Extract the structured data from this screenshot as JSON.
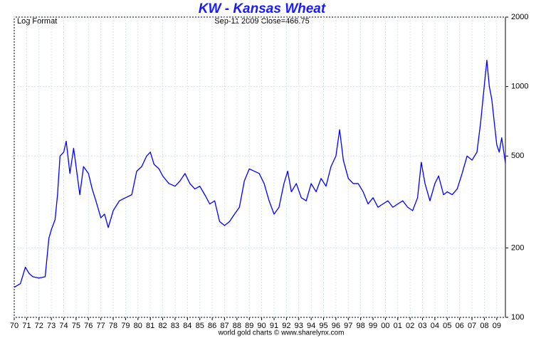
{
  "chart_data": {
    "type": "line",
    "title": "KW  -  Kansas Wheat",
    "subtitle": "Sep-11  2009   Close=466.75",
    "note": "Log Format",
    "footer": "world gold charts © www.sharelynx.com",
    "yscale": "log",
    "grid": true,
    "color": "#0000ff",
    "xlim": [
      1970,
      2009.7
    ],
    "ylim": [
      100,
      2000
    ],
    "yticks": [
      100,
      200,
      500,
      1000,
      2000
    ],
    "xticks": [
      {
        "value": 1970,
        "label": "70"
      },
      {
        "value": 1971,
        "label": "71"
      },
      {
        "value": 1972,
        "label": "72"
      },
      {
        "value": 1973,
        "label": "73"
      },
      {
        "value": 1974,
        "label": "74"
      },
      {
        "value": 1975,
        "label": "75"
      },
      {
        "value": 1976,
        "label": "76"
      },
      {
        "value": 1977,
        "label": "77"
      },
      {
        "value": 1978,
        "label": "78"
      },
      {
        "value": 1979,
        "label": "79"
      },
      {
        "value": 1980,
        "label": "80"
      },
      {
        "value": 1981,
        "label": "81"
      },
      {
        "value": 1982,
        "label": "82"
      },
      {
        "value": 1983,
        "label": "83"
      },
      {
        "value": 1984,
        "label": "84"
      },
      {
        "value": 1985,
        "label": "85"
      },
      {
        "value": 1986,
        "label": "86"
      },
      {
        "value": 1987,
        "label": "87"
      },
      {
        "value": 1988,
        "label": "88"
      },
      {
        "value": 1989,
        "label": "89"
      },
      {
        "value": 1990,
        "label": "90"
      },
      {
        "value": 1991,
        "label": "91"
      },
      {
        "value": 1992,
        "label": "92"
      },
      {
        "value": 1993,
        "label": "93"
      },
      {
        "value": 1994,
        "label": "94"
      },
      {
        "value": 1995,
        "label": "95"
      },
      {
        "value": 1996,
        "label": "96"
      },
      {
        "value": 1997,
        "label": "97"
      },
      {
        "value": 1998,
        "label": "98"
      },
      {
        "value": 1999,
        "label": "99"
      },
      {
        "value": 2000,
        "label": "00"
      },
      {
        "value": 2001,
        "label": "01"
      },
      {
        "value": 2002,
        "label": "02"
      },
      {
        "value": 2003,
        "label": "03"
      },
      {
        "value": 2004,
        "label": "04"
      },
      {
        "value": 2005,
        "label": "05"
      },
      {
        "value": 2006,
        "label": "06"
      },
      {
        "value": 2007,
        "label": "07"
      },
      {
        "value": 2008,
        "label": "08"
      },
      {
        "value": 2009,
        "label": "09"
      }
    ],
    "x": [
      1970.0,
      1970.5,
      1970.9,
      1971.2,
      1971.5,
      1972.0,
      1972.5,
      1972.8,
      1973.0,
      1973.3,
      1973.5,
      1973.7,
      1974.0,
      1974.2,
      1974.5,
      1974.8,
      1975.0,
      1975.3,
      1975.6,
      1976.0,
      1976.3,
      1976.6,
      1977.0,
      1977.3,
      1977.6,
      1978.0,
      1978.5,
      1979.0,
      1979.5,
      1979.9,
      1980.3,
      1980.7,
      1981.0,
      1981.3,
      1981.7,
      1982.0,
      1982.5,
      1983.0,
      1983.4,
      1983.8,
      1984.2,
      1984.6,
      1985.0,
      1985.4,
      1985.8,
      1986.2,
      1986.6,
      1987.0,
      1987.4,
      1987.8,
      1988.2,
      1988.6,
      1989.0,
      1989.4,
      1989.8,
      1990.2,
      1990.6,
      1991.0,
      1991.4,
      1991.8,
      1992.1,
      1992.4,
      1992.8,
      1993.2,
      1993.6,
      1994.0,
      1994.4,
      1994.8,
      1995.2,
      1995.6,
      1996.0,
      1996.3,
      1996.6,
      1997.0,
      1997.4,
      1997.8,
      1998.2,
      1998.6,
      1999.0,
      1999.4,
      1999.8,
      2000.2,
      2000.6,
      2001.0,
      2001.4,
      2001.8,
      2002.2,
      2002.6,
      2002.9,
      2003.2,
      2003.6,
      2004.0,
      2004.3,
      2004.7,
      2005.0,
      2005.4,
      2005.8,
      2006.2,
      2006.6,
      2007.0,
      2007.4,
      2007.7,
      2007.9,
      2008.2,
      2008.4,
      2008.6,
      2008.8,
      2009.0,
      2009.2,
      2009.4,
      2009.7
    ],
    "values": [
      135,
      140,
      165,
      155,
      150,
      148,
      150,
      220,
      240,
      265,
      340,
      500,
      520,
      580,
      420,
      540,
      450,
      340,
      450,
      420,
      360,
      320,
      270,
      280,
      245,
      290,
      320,
      330,
      340,
      430,
      450,
      500,
      520,
      460,
      440,
      410,
      380,
      370,
      390,
      420,
      380,
      360,
      370,
      340,
      310,
      320,
      260,
      250,
      260,
      280,
      300,
      390,
      440,
      430,
      420,
      380,
      320,
      280,
      300,
      380,
      430,
      350,
      380,
      330,
      320,
      380,
      350,
      400,
      370,
      450,
      500,
      650,
      480,
      400,
      380,
      380,
      350,
      310,
      330,
      300,
      310,
      320,
      300,
      310,
      320,
      300,
      290,
      330,
      470,
      380,
      320,
      380,
      410,
      340,
      350,
      340,
      360,
      420,
      500,
      480,
      520,
      700,
      900,
      1300,
      1000,
      880,
      700,
      560,
      520,
      600,
      466.75
    ]
  }
}
